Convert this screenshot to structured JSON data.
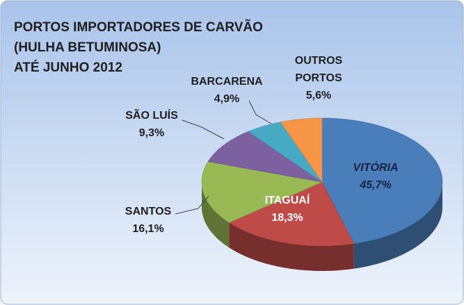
{
  "chart_data": {
    "type": "pie3d",
    "title": [
      "PORTOS IMPORTADORES DE CARVÃO",
      "(HULHA BETUMINOSA)",
      "ATÉ JUNHO 2012"
    ],
    "categories": [
      "VITÓRIA",
      "ITAGUAÍ",
      "SANTOS",
      "SÃO LUÍS",
      "BARCARENA",
      "OUTROS PORTOS"
    ],
    "values": [
      45.7,
      18.3,
      16.1,
      9.3,
      4.9,
      5.6
    ],
    "value_labels": [
      "45,7%",
      "18,3%",
      "16,1%",
      "9,3%",
      "4,9%",
      "5,6%"
    ],
    "colors": [
      "#4a7ebb",
      "#be4b48",
      "#98b954",
      "#7d60a0",
      "#46aac5",
      "#f79646"
    ]
  }
}
